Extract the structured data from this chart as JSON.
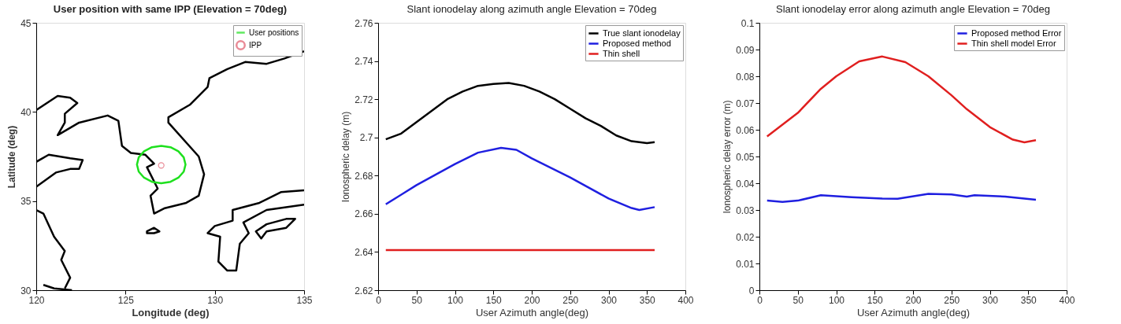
{
  "chart_data": [
    {
      "type": "line",
      "title": "User position with same IPP (Elevation = 70deg)",
      "xlabel": "Longitude (deg)",
      "ylabel": "Latitude (deg)",
      "xlim": [
        120,
        135
      ],
      "xticks": [
        120,
        125,
        130,
        135
      ],
      "ylim": [
        30,
        45
      ],
      "yticks": [
        30,
        35,
        40,
        45
      ],
      "grid": false,
      "legend": "top right",
      "series": [
        {
          "color": "#000000",
          "x": [
            120,
            121.2,
            121.9,
            122.3,
            121.6,
            121.6,
            121.2,
            122.4,
            124,
            124.6,
            124.8,
            125.3,
            126.1,
            126.6,
            126.2,
            126.8,
            126.4,
            126.6,
            127.2,
            128.4,
            129.1,
            129.4,
            129.1,
            127.4,
            127.4,
            128.6,
            129.6,
            129.7,
            130.7,
            131.7,
            132.9,
            133.9,
            135
          ],
          "values": [
            40.1,
            40.9,
            40.8,
            40.5,
            39.9,
            39.4,
            38.7,
            39.4,
            39.8,
            39.5,
            38.1,
            37.7,
            37.6,
            37.1,
            36.9,
            35.7,
            35.3,
            34.3,
            34.6,
            34.9,
            35.3,
            36.5,
            37.5,
            39.4,
            39.7,
            40.4,
            41.4,
            41.9,
            42.4,
            42.8,
            42.7,
            43.0,
            43.4
          ]
        },
        {
          "color": "#000000",
          "x": [
            120,
            120.7,
            121.9,
            122.6,
            122.4,
            121.9,
            121.1,
            120
          ],
          "values": [
            37.2,
            37.6,
            37.4,
            37.3,
            36.8,
            36.8,
            36.6,
            35.8
          ]
        },
        {
          "color": "#000000",
          "x": [
            120,
            120.4,
            121,
            121.6,
            121.4,
            121.9,
            121.6
          ],
          "values": [
            34.5,
            34.3,
            33.0,
            32.2,
            31.7,
            30.7,
            30.1
          ]
        },
        {
          "color": "#000000",
          "x": [
            120.4,
            121,
            122
          ],
          "values": [
            30.3,
            30.1,
            30
          ]
        },
        {
          "color": "#000000",
          "x": [
            126.2,
            126.6,
            126.9,
            126.6,
            126.2,
            126.2,
            126.6
          ],
          "values": [
            33.3,
            33.5,
            33.3,
            33.2,
            33.2,
            33.3,
            33.5
          ]
        },
        {
          "color": "#000000",
          "x": [
            135,
            133.7,
            132.5,
            131,
            131,
            130,
            129.6,
            130.3,
            130.2,
            130.7,
            131.2,
            131.4,
            131.9,
            131.6,
            132.9,
            135
          ],
          "values": [
            35.6,
            35.5,
            34.9,
            34.5,
            33.9,
            33.6,
            33.2,
            33.0,
            31.6,
            31.1,
            31.1,
            32.6,
            33.2,
            33.8,
            34.5,
            34.8
          ]
        },
        {
          "color": "#000000",
          "x": [
            132.3,
            132.9,
            134,
            134.5,
            134,
            132.9,
            132.6,
            132.3,
            132.9
          ],
          "values": [
            33.3,
            33.7,
            34,
            34,
            33.5,
            33.3,
            32.9,
            33.3,
            33.7
          ]
        },
        {
          "name": "User positions",
          "color": "#1ee01e",
          "x": [
            128.36,
            128.26,
            127.96,
            127.52,
            127.0,
            126.48,
            126.04,
            125.74,
            125.64,
            125.74,
            126.04,
            126.48,
            127.0,
            127.52,
            127.96,
            128.26,
            128.36,
            128.26
          ],
          "values": [
            37.05,
            37.45,
            37.79,
            38.02,
            38.1,
            38.02,
            37.79,
            37.45,
            37.05,
            36.65,
            36.31,
            36.08,
            36.0,
            36.08,
            36.31,
            36.65,
            37.05,
            37.45
          ]
        },
        {
          "name": "IPP",
          "type": "scatter",
          "marker": "circle",
          "color": "#e05a6a",
          "x": [
            127
          ],
          "values": [
            37
          ]
        }
      ]
    },
    {
      "type": "line",
      "title": "Slant ionodelay along azimuth angle Elevation = 70deg",
      "xlabel": "User Azimuth angle(deg)",
      "ylabel": "Ionospheric delay (m)",
      "xlim": [
        0,
        400
      ],
      "xticks": [
        0,
        50,
        100,
        150,
        200,
        250,
        300,
        350,
        400
      ],
      "ylim": [
        2.62,
        2.76
      ],
      "yticks": [
        2.62,
        2.64,
        2.66,
        2.68,
        2.7,
        2.72,
        2.74,
        2.76
      ],
      "grid": false,
      "legend": "top right",
      "series": [
        {
          "name": "True slant ionodelay",
          "color": "#000000",
          "x": [
            10,
            30,
            50,
            70,
            90,
            110,
            130,
            150,
            170,
            190,
            210,
            230,
            250,
            270,
            290,
            310,
            330,
            350,
            360
          ],
          "values": [
            2.699,
            2.702,
            2.708,
            2.714,
            2.72,
            2.724,
            2.727,
            2.728,
            2.7285,
            2.727,
            2.724,
            2.72,
            2.715,
            2.71,
            2.706,
            2.701,
            2.698,
            2.697,
            2.6975
          ]
        },
        {
          "name": "Proposed method",
          "color": "#1f1fe0",
          "x": [
            10,
            50,
            100,
            130,
            160,
            180,
            200,
            250,
            300,
            330,
            340,
            360
          ],
          "values": [
            2.665,
            2.675,
            2.686,
            2.692,
            2.6945,
            2.6935,
            2.689,
            2.679,
            2.668,
            2.663,
            2.662,
            2.6635
          ]
        },
        {
          "name": "Thin shell",
          "color": "#e01f1f",
          "x": [
            10,
            360
          ],
          "values": [
            2.641,
            2.641
          ]
        }
      ]
    },
    {
      "type": "line",
      "title": "Slant ionodelay error along azimuth angle Elevation = 70deg",
      "xlabel": "User Azimuth angle(deg)",
      "ylabel": "Ionospheric delay error (m)",
      "xlim": [
        0,
        400
      ],
      "xticks": [
        0,
        50,
        100,
        150,
        200,
        250,
        300,
        350,
        400
      ],
      "ylim": [
        0,
        0.1
      ],
      "yticks": [
        0,
        0.01,
        0.02,
        0.03,
        0.04,
        0.05,
        0.06,
        0.07,
        0.08,
        0.09,
        0.1
      ],
      "grid": false,
      "legend": "top right",
      "series": [
        {
          "name": "Proposed method Error",
          "color": "#1f1fe0",
          "x": [
            10,
            30,
            50,
            80,
            120,
            160,
            180,
            220,
            250,
            270,
            280,
            320,
            360
          ],
          "values": [
            0.0335,
            0.033,
            0.0335,
            0.0355,
            0.0348,
            0.0343,
            0.0342,
            0.036,
            0.0358,
            0.035,
            0.0355,
            0.035,
            0.0338
          ]
        },
        {
          "name": "Thin shell model Error",
          "color": "#e01f1f",
          "x": [
            10,
            50,
            80,
            100,
            130,
            160,
            190,
            220,
            250,
            270,
            300,
            330,
            345,
            360
          ],
          "values": [
            0.0575,
            0.0663,
            0.0753,
            0.08,
            0.0856,
            0.0874,
            0.0853,
            0.08,
            0.0729,
            0.0677,
            0.061,
            0.0563,
            0.0553,
            0.0561
          ]
        }
      ]
    }
  ]
}
